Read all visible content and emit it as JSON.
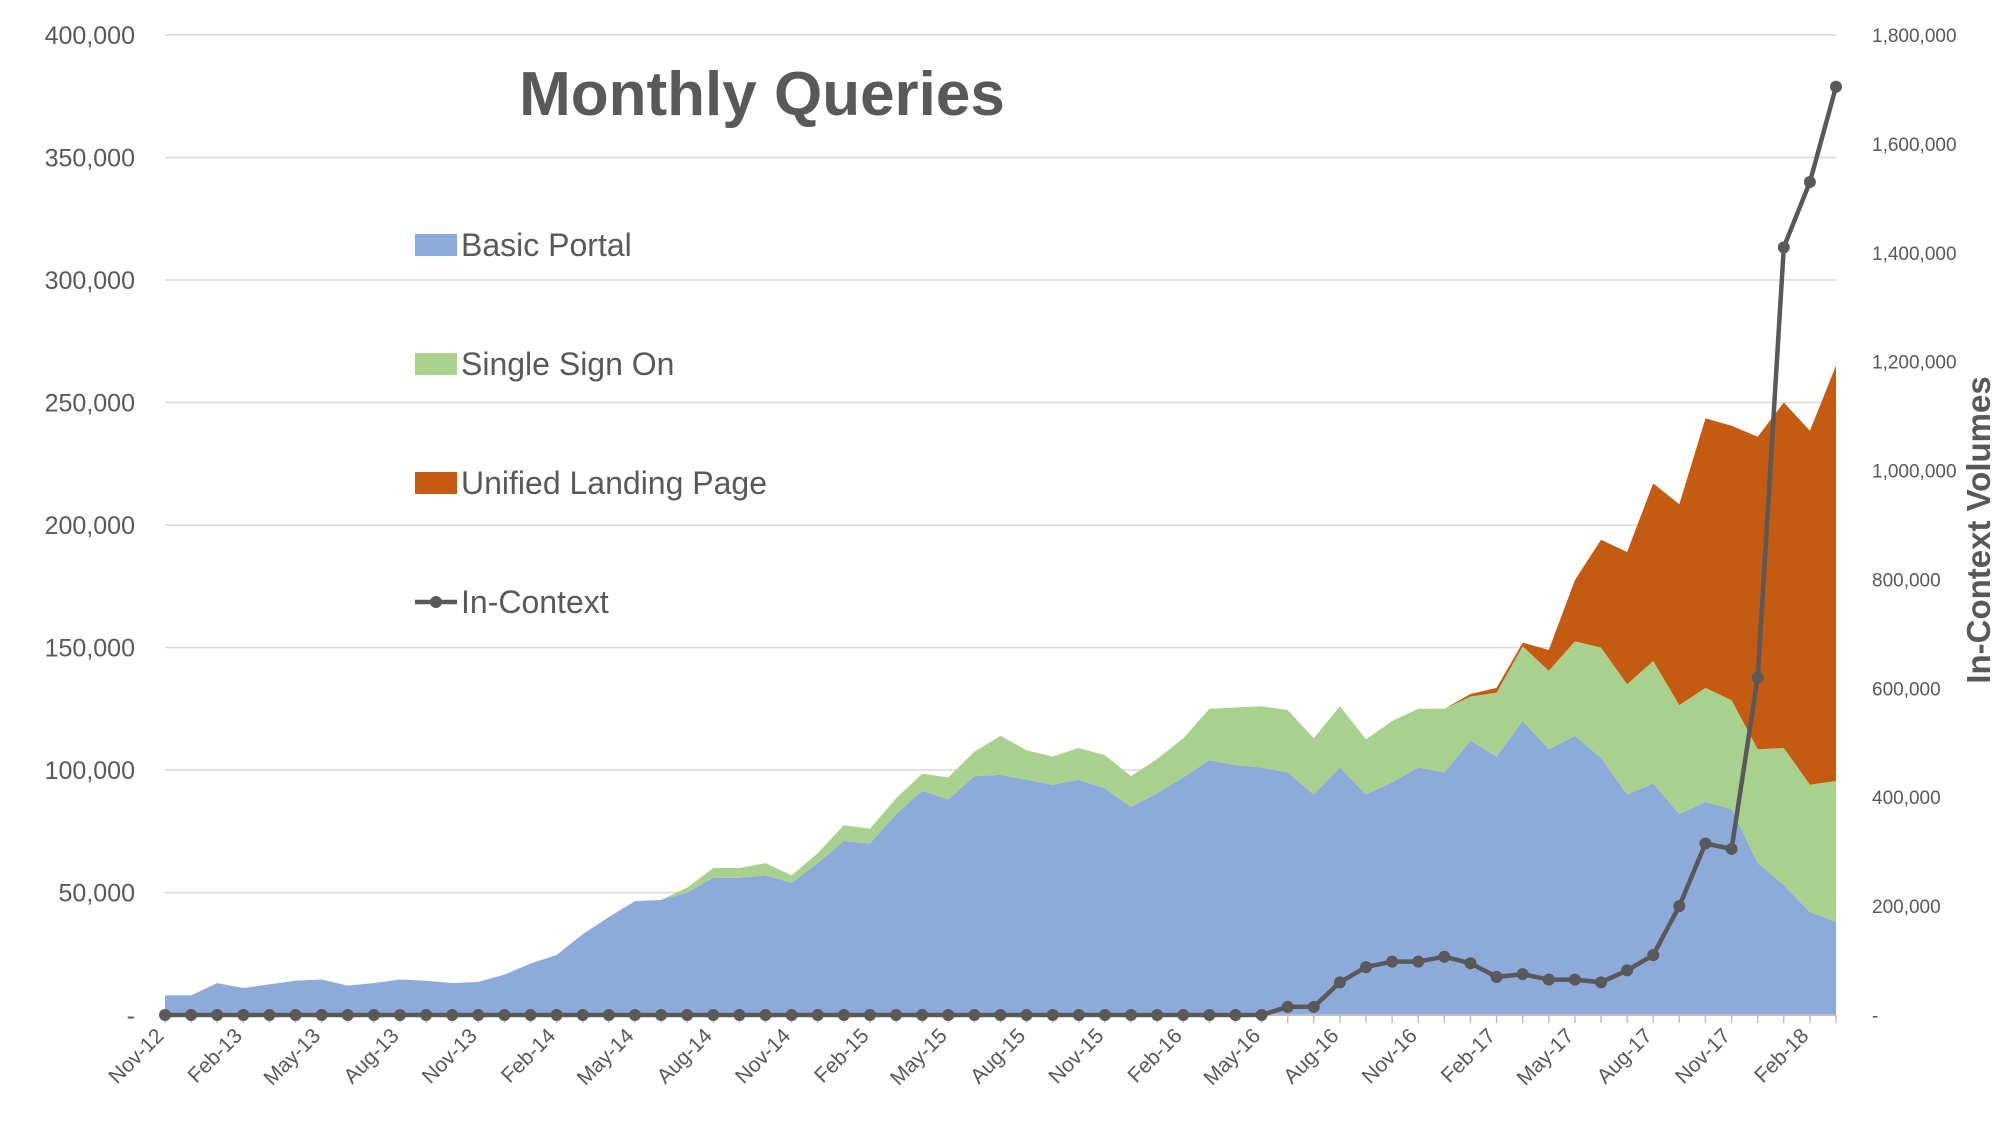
{
  "chart_data": {
    "type": "area",
    "title": "Monthly Queries",
    "y2label": "In-Context Volumes",
    "x": [
      "Nov-12",
      "Dec-12",
      "Jan-13",
      "Feb-13",
      "Mar-13",
      "Apr-13",
      "May-13",
      "Jun-13",
      "Jul-13",
      "Aug-13",
      "Sep-13",
      "Oct-13",
      "Nov-13",
      "Dec-13",
      "Jan-14",
      "Feb-14",
      "Mar-14",
      "Apr-14",
      "May-14",
      "Jun-14",
      "Jul-14",
      "Aug-14",
      "Sep-14",
      "Oct-14",
      "Nov-14",
      "Dec-14",
      "Jan-15",
      "Feb-15",
      "Mar-15",
      "Apr-15",
      "May-15",
      "Jun-15",
      "Jul-15",
      "Aug-15",
      "Sep-15",
      "Oct-15",
      "Nov-15",
      "Dec-15",
      "Jan-16",
      "Feb-16",
      "Mar-16",
      "Apr-16",
      "May-16",
      "Jun-16",
      "Jul-16",
      "Aug-16",
      "Sep-16",
      "Oct-16",
      "Nov-16",
      "Dec-16",
      "Jan-17",
      "Feb-17",
      "Mar-17",
      "Apr-17",
      "May-17",
      "Jun-17",
      "Jul-17",
      "Aug-17",
      "Sep-17",
      "Oct-17",
      "Nov-17",
      "Dec-17",
      "Jan-18",
      "Feb-18",
      "Mar-18"
    ],
    "x_tick_labels": [
      "Nov-12",
      "Feb-13",
      "May-13",
      "Aug-13",
      "Nov-13",
      "Feb-14",
      "May-14",
      "Aug-14",
      "Nov-14",
      "Feb-15",
      "May-15",
      "Aug-15",
      "Nov-15",
      "Feb-16",
      "May-16",
      "Aug-16",
      "Nov-16",
      "Feb-17",
      "May-17",
      "Aug-17",
      "Nov-17",
      "Feb-18"
    ],
    "ylim": [
      0,
      400000
    ],
    "y_tick_labels": [
      "-",
      "50,000",
      "100,000",
      "150,000",
      "200,000",
      "250,000",
      "300,000",
      "350,000",
      "400,000"
    ],
    "y2lim": [
      0,
      1800000
    ],
    "y2_tick_labels": [
      "-",
      "200,000",
      "400,000",
      "600,000",
      "800,000",
      "1,000,000",
      "1,200,000",
      "1,400,000",
      "1,600,000",
      "1,800,000"
    ],
    "legend_position": "upper-left inside plot",
    "grid": "horizontal",
    "series": [
      {
        "name": "Basic Portal",
        "kind": "stacked-area",
        "axis": "left",
        "color": "#8eaadb",
        "values": [
          8000,
          8000,
          13000,
          11000,
          12500,
          14000,
          14500,
          12000,
          13000,
          14500,
          14000,
          13000,
          13500,
          16500,
          21000,
          24500,
          33000,
          40000,
          46500,
          47000,
          50000,
          56000,
          56000,
          57000,
          54000,
          62000,
          71000,
          70000,
          82000,
          91500,
          88000,
          97500,
          98000,
          96000,
          94000,
          96000,
          92500,
          85000,
          90500,
          97000,
          104000,
          102000,
          101000,
          99000,
          90000,
          101000,
          90000,
          95000,
          101000,
          99000,
          112000,
          105500,
          120000,
          108500,
          114000,
          105000,
          90000,
          94500,
          82000,
          87000,
          84000,
          62000,
          53000,
          42000,
          38000
        ]
      },
      {
        "name": "Single Sign On",
        "kind": "stacked-area",
        "axis": "left",
        "color": "#a9d18e",
        "values": [
          0,
          0,
          0,
          0,
          0,
          0,
          0,
          0,
          0,
          0,
          0,
          0,
          0,
          0,
          0,
          0,
          0,
          0,
          0,
          0,
          2000,
          4000,
          4000,
          5000,
          3000,
          4000,
          6500,
          6000,
          6500,
          7000,
          9000,
          10000,
          16000,
          12000,
          11500,
          13000,
          13500,
          12500,
          14000,
          16000,
          21000,
          23500,
          25000,
          25500,
          23000,
          25000,
          22500,
          25000,
          24000,
          26000,
          18000,
          26000,
          30500,
          32000,
          38500,
          45000,
          45000,
          50000,
          44500,
          46500,
          44500,
          46500,
          56000,
          52000,
          57500
        ]
      },
      {
        "name": "Unified Landing Page",
        "kind": "stacked-area",
        "axis": "left",
        "color": "#c55a11",
        "values": [
          0,
          0,
          0,
          0,
          0,
          0,
          0,
          0,
          0,
          0,
          0,
          0,
          0,
          0,
          0,
          0,
          0,
          0,
          0,
          0,
          0,
          0,
          0,
          0,
          0,
          0,
          0,
          0,
          0,
          0,
          0,
          0,
          0,
          0,
          0,
          0,
          0,
          0,
          0,
          0,
          0,
          0,
          0,
          0,
          0,
          0,
          0,
          0,
          0,
          0,
          1000,
          2000,
          1500,
          8500,
          25000,
          44000,
          54000,
          72500,
          82000,
          110000,
          112000,
          127500,
          141000,
          144500,
          169500
        ]
      },
      {
        "name": "In-Context",
        "kind": "line-markers",
        "axis": "right",
        "color": "#595959",
        "values": [
          0,
          0,
          0,
          0,
          0,
          0,
          0,
          0,
          0,
          0,
          0,
          0,
          0,
          0,
          0,
          0,
          0,
          0,
          0,
          0,
          0,
          0,
          0,
          0,
          0,
          0,
          0,
          0,
          0,
          0,
          0,
          0,
          0,
          0,
          0,
          0,
          0,
          0,
          0,
          0,
          0,
          0,
          0,
          15000,
          15000,
          60000,
          88000,
          98000,
          98000,
          107000,
          95000,
          70000,
          75000,
          65000,
          65000,
          60000,
          82000,
          110000,
          200000,
          315000,
          305000,
          620000,
          1410000,
          1530000,
          1705000
        ]
      }
    ]
  }
}
